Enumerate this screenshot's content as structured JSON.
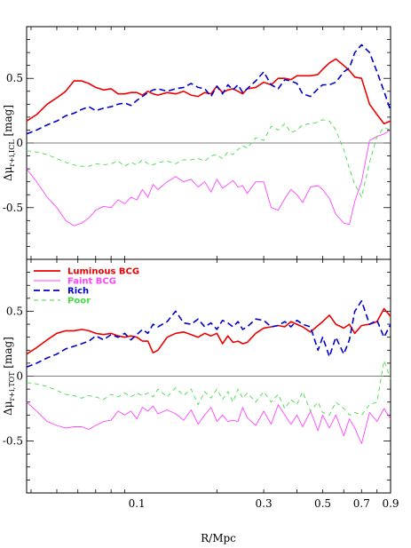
{
  "chart_data": [
    {
      "type": "line",
      "panel": "top",
      "ylabel": "Δμ",
      "ylabel_sub": "r+i,ICL",
      "ylabel_unit": "[mag]",
      "xscale": "log",
      "xlim": [
        0.0385,
        0.9
      ],
      "ylim": [
        -0.9,
        0.9
      ],
      "yticks": [
        {
          "v": 0.5,
          "label": "0.5"
        },
        {
          "v": 0,
          "label": "0"
        },
        {
          "v": -0.5,
          "label": "-0.5"
        }
      ],
      "zero_line": true,
      "series": [
        {
          "name": "Luminous BCG",
          "color": "#ee0000",
          "dash": "",
          "width": 1.6,
          "x": [
            0.0385,
            0.042,
            0.046,
            0.05,
            0.054,
            0.058,
            0.062,
            0.066,
            0.07,
            0.075,
            0.08,
            0.085,
            0.09,
            0.095,
            0.1,
            0.105,
            0.11,
            0.115,
            0.12,
            0.13,
            0.14,
            0.15,
            0.16,
            0.17,
            0.18,
            0.19,
            0.2,
            0.21,
            0.22,
            0.23,
            0.24,
            0.25,
            0.26,
            0.28,
            0.3,
            0.32,
            0.34,
            0.36,
            0.38,
            0.4,
            0.42,
            0.45,
            0.48,
            0.5,
            0.53,
            0.56,
            0.6,
            0.63,
            0.66,
            0.7,
            0.75,
            0.8,
            0.85,
            0.9
          ],
          "y": [
            0.17,
            0.22,
            0.3,
            0.35,
            0.4,
            0.48,
            0.48,
            0.46,
            0.43,
            0.41,
            0.42,
            0.38,
            0.38,
            0.39,
            0.39,
            0.37,
            0.4,
            0.38,
            0.37,
            0.39,
            0.38,
            0.4,
            0.37,
            0.36,
            0.39,
            0.38,
            0.44,
            0.39,
            0.41,
            0.42,
            0.4,
            0.38,
            0.42,
            0.43,
            0.47,
            0.45,
            0.5,
            0.5,
            0.49,
            0.52,
            0.52,
            0.52,
            0.53,
            0.57,
            0.62,
            0.65,
            0.6,
            0.56,
            0.51,
            0.5,
            0.3,
            0.22,
            0.15,
            0.17
          ]
        },
        {
          "name": "Faint BCG",
          "color": "#ff44ff",
          "dash": "",
          "width": 0.9,
          "x": [
            0.0385,
            0.042,
            0.046,
            0.05,
            0.054,
            0.058,
            0.062,
            0.066,
            0.07,
            0.075,
            0.08,
            0.085,
            0.09,
            0.095,
            0.1,
            0.105,
            0.11,
            0.115,
            0.12,
            0.13,
            0.14,
            0.15,
            0.16,
            0.17,
            0.18,
            0.19,
            0.2,
            0.21,
            0.22,
            0.23,
            0.24,
            0.25,
            0.26,
            0.28,
            0.3,
            0.32,
            0.34,
            0.36,
            0.38,
            0.4,
            0.42,
            0.45,
            0.48,
            0.5,
            0.53,
            0.56,
            0.6,
            0.63,
            0.66,
            0.7,
            0.75,
            0.8,
            0.85,
            0.9
          ],
          "y": [
            -0.2,
            -0.3,
            -0.42,
            -0.5,
            -0.6,
            -0.64,
            -0.62,
            -0.58,
            -0.52,
            -0.49,
            -0.5,
            -0.44,
            -0.47,
            -0.42,
            -0.44,
            -0.36,
            -0.42,
            -0.32,
            -0.36,
            -0.3,
            -0.26,
            -0.3,
            -0.28,
            -0.34,
            -0.3,
            -0.38,
            -0.28,
            -0.35,
            -0.32,
            -0.29,
            -0.34,
            -0.33,
            -0.39,
            -0.3,
            -0.3,
            -0.5,
            -0.52,
            -0.43,
            -0.36,
            -0.4,
            -0.46,
            -0.34,
            -0.33,
            -0.36,
            -0.43,
            -0.55,
            -0.62,
            -0.63,
            -0.45,
            -0.3,
            0.02,
            0.05,
            0.07,
            0.1
          ]
        },
        {
          "name": "Rich",
          "color": "#0000cc",
          "dash": "7,4",
          "width": 1.6,
          "x": [
            0.0385,
            0.042,
            0.046,
            0.05,
            0.054,
            0.058,
            0.062,
            0.066,
            0.07,
            0.075,
            0.08,
            0.085,
            0.09,
            0.095,
            0.1,
            0.105,
            0.11,
            0.115,
            0.12,
            0.13,
            0.14,
            0.15,
            0.16,
            0.17,
            0.18,
            0.19,
            0.2,
            0.21,
            0.22,
            0.23,
            0.24,
            0.25,
            0.26,
            0.28,
            0.3,
            0.32,
            0.34,
            0.36,
            0.38,
            0.4,
            0.42,
            0.45,
            0.48,
            0.5,
            0.53,
            0.56,
            0.6,
            0.63,
            0.66,
            0.7,
            0.75,
            0.8,
            0.85,
            0.9
          ],
          "y": [
            0.07,
            0.1,
            0.14,
            0.17,
            0.21,
            0.23,
            0.26,
            0.28,
            0.25,
            0.27,
            0.28,
            0.3,
            0.31,
            0.29,
            0.33,
            0.36,
            0.39,
            0.41,
            0.42,
            0.4,
            0.42,
            0.43,
            0.46,
            0.43,
            0.42,
            0.36,
            0.44,
            0.38,
            0.45,
            0.41,
            0.45,
            0.39,
            0.42,
            0.48,
            0.55,
            0.45,
            0.42,
            0.49,
            0.48,
            0.46,
            0.38,
            0.36,
            0.42,
            0.45,
            0.45,
            0.47,
            0.55,
            0.58,
            0.7,
            0.76,
            0.7,
            0.55,
            0.4,
            0.25
          ]
        },
        {
          "name": "Poor",
          "color": "#44dd44",
          "dash": "5,4",
          "width": 0.9,
          "x": [
            0.0385,
            0.042,
            0.046,
            0.05,
            0.054,
            0.058,
            0.062,
            0.066,
            0.07,
            0.075,
            0.08,
            0.085,
            0.09,
            0.095,
            0.1,
            0.105,
            0.11,
            0.115,
            0.12,
            0.13,
            0.14,
            0.15,
            0.16,
            0.17,
            0.18,
            0.19,
            0.2,
            0.21,
            0.22,
            0.23,
            0.24,
            0.25,
            0.26,
            0.28,
            0.3,
            0.32,
            0.34,
            0.36,
            0.38,
            0.4,
            0.42,
            0.45,
            0.48,
            0.5,
            0.53,
            0.56,
            0.6,
            0.63,
            0.66,
            0.7,
            0.75,
            0.8,
            0.85,
            0.9
          ],
          "y": [
            -0.06,
            -0.07,
            -0.09,
            -0.12,
            -0.15,
            -0.17,
            -0.18,
            -0.18,
            -0.16,
            -0.17,
            -0.16,
            -0.14,
            -0.18,
            -0.15,
            -0.17,
            -0.13,
            -0.16,
            -0.17,
            -0.15,
            -0.14,
            -0.16,
            -0.13,
            -0.13,
            -0.12,
            -0.14,
            -0.1,
            -0.09,
            -0.12,
            -0.07,
            -0.09,
            -0.05,
            -0.02,
            -0.04,
            0.04,
            0.02,
            0.13,
            0.1,
            0.15,
            0.08,
            0.1,
            0.14,
            0.15,
            0.16,
            0.18,
            0.17,
            0.1,
            -0.05,
            -0.2,
            -0.32,
            -0.42,
            -0.15,
            0.05,
            0.12,
            0.1
          ]
        }
      ]
    },
    {
      "type": "line",
      "panel": "bottom",
      "ylabel": "Δμ",
      "ylabel_sub": "r+i,TOT",
      "ylabel_unit": "[mag]",
      "xlabel": "R/Mpc",
      "xscale": "log",
      "xlim": [
        0.0385,
        0.9
      ],
      "ylim": [
        -0.9,
        0.9
      ],
      "yticks": [
        {
          "v": 0.5,
          "label": "0.5"
        },
        {
          "v": 0,
          "label": "0"
        },
        {
          "v": -0.5,
          "label": "-0.5"
        }
      ],
      "xticks": [
        {
          "v": 0.1,
          "label": "0.1"
        },
        {
          "v": 0.3,
          "label": "0.3"
        },
        {
          "v": 0.5,
          "label": "0.5"
        },
        {
          "v": 0.7,
          "label": "0.7"
        },
        {
          "v": 0.9,
          "label": "0.9"
        }
      ],
      "zero_line": true,
      "series": [
        {
          "name": "Luminous BCG",
          "color": "#ee0000",
          "dash": "",
          "width": 1.6,
          "x": [
            0.0385,
            0.042,
            0.046,
            0.05,
            0.054,
            0.058,
            0.062,
            0.066,
            0.07,
            0.075,
            0.08,
            0.085,
            0.09,
            0.095,
            0.1,
            0.105,
            0.11,
            0.115,
            0.12,
            0.13,
            0.14,
            0.15,
            0.16,
            0.17,
            0.18,
            0.19,
            0.2,
            0.21,
            0.22,
            0.23,
            0.24,
            0.25,
            0.26,
            0.28,
            0.3,
            0.32,
            0.34,
            0.36,
            0.38,
            0.4,
            0.42,
            0.45,
            0.48,
            0.5,
            0.53,
            0.56,
            0.6,
            0.63,
            0.66,
            0.7,
            0.75,
            0.8,
            0.85,
            0.9
          ],
          "y": [
            0.17,
            0.22,
            0.28,
            0.33,
            0.35,
            0.35,
            0.36,
            0.35,
            0.33,
            0.32,
            0.33,
            0.31,
            0.3,
            0.31,
            0.3,
            0.27,
            0.27,
            0.18,
            0.2,
            0.3,
            0.33,
            0.34,
            0.32,
            0.3,
            0.33,
            0.31,
            0.33,
            0.25,
            0.31,
            0.26,
            0.27,
            0.25,
            0.26,
            0.33,
            0.37,
            0.38,
            0.39,
            0.38,
            0.42,
            0.4,
            0.38,
            0.34,
            0.39,
            0.42,
            0.47,
            0.4,
            0.37,
            0.4,
            0.33,
            0.39,
            0.4,
            0.42,
            0.52,
            0.46
          ]
        },
        {
          "name": "Faint BCG",
          "color": "#ff44ff",
          "dash": "",
          "width": 0.9,
          "x": [
            0.0385,
            0.042,
            0.046,
            0.05,
            0.054,
            0.058,
            0.062,
            0.066,
            0.07,
            0.075,
            0.08,
            0.085,
            0.09,
            0.095,
            0.1,
            0.105,
            0.11,
            0.115,
            0.12,
            0.13,
            0.14,
            0.15,
            0.16,
            0.17,
            0.18,
            0.19,
            0.2,
            0.21,
            0.22,
            0.23,
            0.24,
            0.25,
            0.26,
            0.28,
            0.3,
            0.32,
            0.34,
            0.36,
            0.38,
            0.4,
            0.42,
            0.45,
            0.48,
            0.5,
            0.53,
            0.56,
            0.6,
            0.63,
            0.66,
            0.7,
            0.75,
            0.8,
            0.85,
            0.9
          ],
          "y": [
            -0.2,
            -0.27,
            -0.35,
            -0.38,
            -0.4,
            -0.39,
            -0.39,
            -0.41,
            -0.38,
            -0.35,
            -0.34,
            -0.27,
            -0.3,
            -0.27,
            -0.33,
            -0.24,
            -0.27,
            -0.23,
            -0.29,
            -0.26,
            -0.29,
            -0.34,
            -0.26,
            -0.37,
            -0.3,
            -0.24,
            -0.35,
            -0.3,
            -0.35,
            -0.34,
            -0.35,
            -0.24,
            -0.32,
            -0.38,
            -0.27,
            -0.37,
            -0.22,
            -0.3,
            -0.37,
            -0.3,
            -0.39,
            -0.27,
            -0.42,
            -0.3,
            -0.4,
            -0.3,
            -0.46,
            -0.33,
            -0.4,
            -0.52,
            -0.28,
            -0.35,
            -0.25,
            -0.33
          ]
        },
        {
          "name": "Rich",
          "color": "#0000cc",
          "dash": "7,4",
          "width": 1.6,
          "x": [
            0.0385,
            0.042,
            0.046,
            0.05,
            0.054,
            0.058,
            0.062,
            0.066,
            0.07,
            0.075,
            0.08,
            0.085,
            0.09,
            0.095,
            0.1,
            0.105,
            0.11,
            0.115,
            0.12,
            0.13,
            0.14,
            0.15,
            0.16,
            0.17,
            0.18,
            0.19,
            0.2,
            0.21,
            0.22,
            0.23,
            0.24,
            0.25,
            0.26,
            0.28,
            0.3,
            0.32,
            0.34,
            0.36,
            0.38,
            0.4,
            0.42,
            0.45,
            0.48,
            0.5,
            0.53,
            0.56,
            0.6,
            0.63,
            0.66,
            0.7,
            0.75,
            0.8,
            0.85,
            0.9
          ],
          "y": [
            0.07,
            0.1,
            0.14,
            0.17,
            0.21,
            0.23,
            0.25,
            0.27,
            0.31,
            0.28,
            0.32,
            0.3,
            0.33,
            0.28,
            0.32,
            0.36,
            0.33,
            0.4,
            0.38,
            0.42,
            0.5,
            0.41,
            0.4,
            0.44,
            0.38,
            0.41,
            0.36,
            0.43,
            0.41,
            0.38,
            0.42,
            0.36,
            0.38,
            0.44,
            0.43,
            0.38,
            0.39,
            0.42,
            0.38,
            0.43,
            0.4,
            0.38,
            0.2,
            0.3,
            0.15,
            0.3,
            0.17,
            0.28,
            0.5,
            0.58,
            0.4,
            0.43,
            0.3,
            0.4
          ]
        },
        {
          "name": "Poor",
          "color": "#44dd44",
          "dash": "5,4",
          "width": 0.9,
          "x": [
            0.0385,
            0.042,
            0.046,
            0.05,
            0.054,
            0.058,
            0.062,
            0.066,
            0.07,
            0.075,
            0.08,
            0.085,
            0.09,
            0.095,
            0.1,
            0.105,
            0.11,
            0.115,
            0.12,
            0.13,
            0.14,
            0.15,
            0.16,
            0.17,
            0.18,
            0.19,
            0.2,
            0.21,
            0.22,
            0.23,
            0.24,
            0.25,
            0.26,
            0.28,
            0.3,
            0.32,
            0.34,
            0.36,
            0.38,
            0.4,
            0.42,
            0.45,
            0.48,
            0.5,
            0.53,
            0.56,
            0.6,
            0.63,
            0.66,
            0.7,
            0.75,
            0.8,
            0.85,
            0.9
          ],
          "y": [
            -0.05,
            -0.06,
            -0.08,
            -0.11,
            -0.14,
            -0.15,
            -0.17,
            -0.15,
            -0.16,
            -0.18,
            -0.14,
            -0.16,
            -0.13,
            -0.16,
            -0.13,
            -0.15,
            -0.13,
            -0.16,
            -0.1,
            -0.16,
            -0.09,
            -0.15,
            -0.1,
            -0.22,
            -0.12,
            -0.17,
            -0.1,
            -0.18,
            -0.12,
            -0.2,
            -0.1,
            -0.17,
            -0.13,
            -0.2,
            -0.12,
            -0.2,
            -0.14,
            -0.25,
            -0.18,
            -0.22,
            -0.12,
            -0.27,
            -0.2,
            -0.28,
            -0.3,
            -0.2,
            -0.25,
            -0.3,
            -0.28,
            -0.3,
            -0.22,
            -0.2,
            0.12,
            -0.02
          ]
        }
      ]
    }
  ],
  "legend": {
    "items": [
      {
        "label": "Luminous BCG",
        "color": "#ee0000",
        "dash": "",
        "width": 1.8
      },
      {
        "label": "Faint BCG",
        "color": "#ff44ff",
        "dash": "",
        "width": 1
      },
      {
        "label": "Rich",
        "color": "#0000cc",
        "dash": "7,4",
        "width": 1.8
      },
      {
        "label": "Poor",
        "color": "#44dd44",
        "dash": "5,4",
        "width": 1
      }
    ]
  }
}
